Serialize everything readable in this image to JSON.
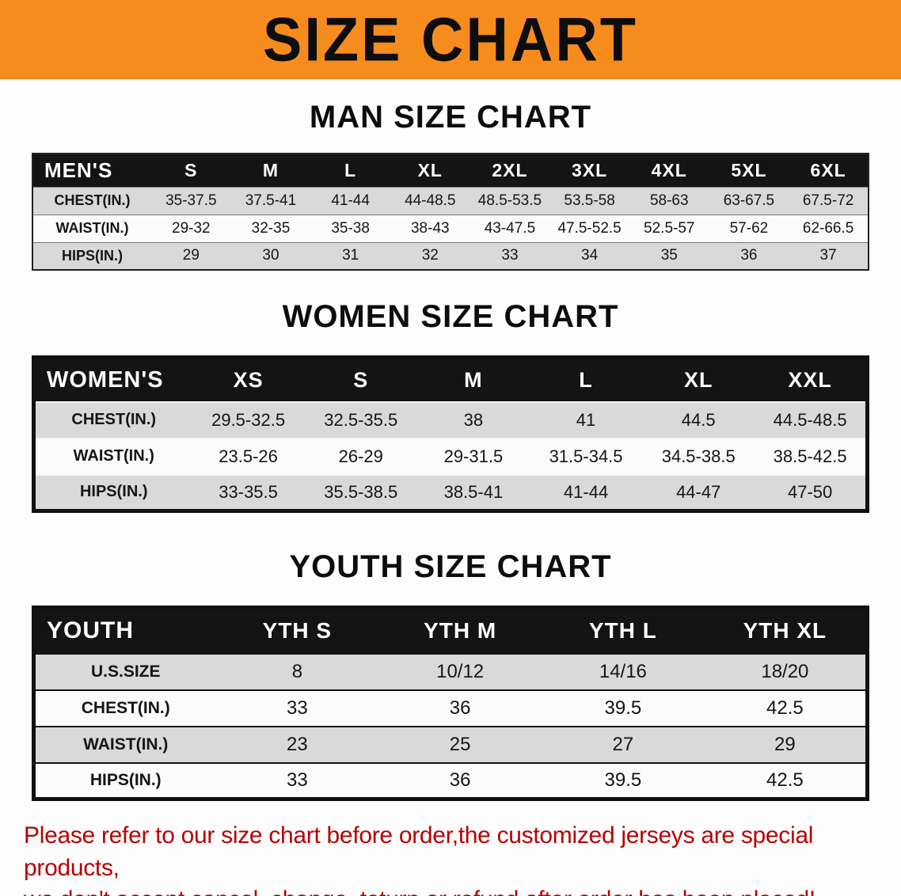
{
  "banner": {
    "title": "SIZE CHART"
  },
  "colors": {
    "banner_bg": "#f68c1e",
    "table_header_bg": "#141414",
    "row_shade": "#d9d9d9",
    "disclaimer_text": "#b70202"
  },
  "sections": [
    {
      "heading": "MAN SIZE CHART",
      "table": {
        "header": [
          "MEN'S",
          "S",
          "M",
          "L",
          "XL",
          "2XL",
          "3XL",
          "4XL",
          "5XL",
          "6XL"
        ],
        "rows": [
          [
            "CHEST(IN.)",
            "35-37.5",
            "37.5-41",
            "41-44",
            "44-48.5",
            "48.5-53.5",
            "53.5-58",
            "58-63",
            "63-67.5",
            "67.5-72"
          ],
          [
            "WAIST(IN.)",
            "29-32",
            "32-35",
            "35-38",
            "38-43",
            "43-47.5",
            "47.5-52.5",
            "52.5-57",
            "57-62",
            "62-66.5"
          ],
          [
            "HIPS(IN.)",
            "29",
            "30",
            "31",
            "32",
            "33",
            "34",
            "35",
            "36",
            "37"
          ]
        ]
      }
    },
    {
      "heading": "WOMEN SIZE CHART",
      "table": {
        "header": [
          "WOMEN'S",
          "XS",
          "S",
          "M",
          "L",
          "XL",
          "XXL"
        ],
        "rows": [
          [
            "CHEST(IN.)",
            "29.5-32.5",
            "32.5-35.5",
            "38",
            "41",
            "44.5",
            "44.5-48.5"
          ],
          [
            "WAIST(IN.)",
            "23.5-26",
            "26-29",
            "29-31.5",
            "31.5-34.5",
            "34.5-38.5",
            "38.5-42.5"
          ],
          [
            "HIPS(IN.)",
            "33-35.5",
            "35.5-38.5",
            "38.5-41",
            "41-44",
            "44-47",
            "47-50"
          ]
        ]
      }
    },
    {
      "heading": "YOUTH SIZE CHART",
      "table": {
        "header": [
          "YOUTH",
          "YTH S",
          "YTH M",
          "YTH L",
          "YTH XL"
        ],
        "rows": [
          [
            "U.S.SIZE",
            "8",
            "10/12",
            "14/16",
            "18/20"
          ],
          [
            "CHEST(IN.)",
            "33",
            "36",
            "39.5",
            "42.5"
          ],
          [
            "WAIST(IN.)",
            "23",
            "25",
            "27",
            "29"
          ],
          [
            "HIPS(IN.)",
            "33",
            "36",
            "39.5",
            "42.5"
          ]
        ]
      }
    }
  ],
  "footer": {
    "line1": "Please refer to our size chart before order,the customized jerseys are special products,",
    "line2": "we don't accept cancel, change, teturn or refund after order has been placed!"
  }
}
